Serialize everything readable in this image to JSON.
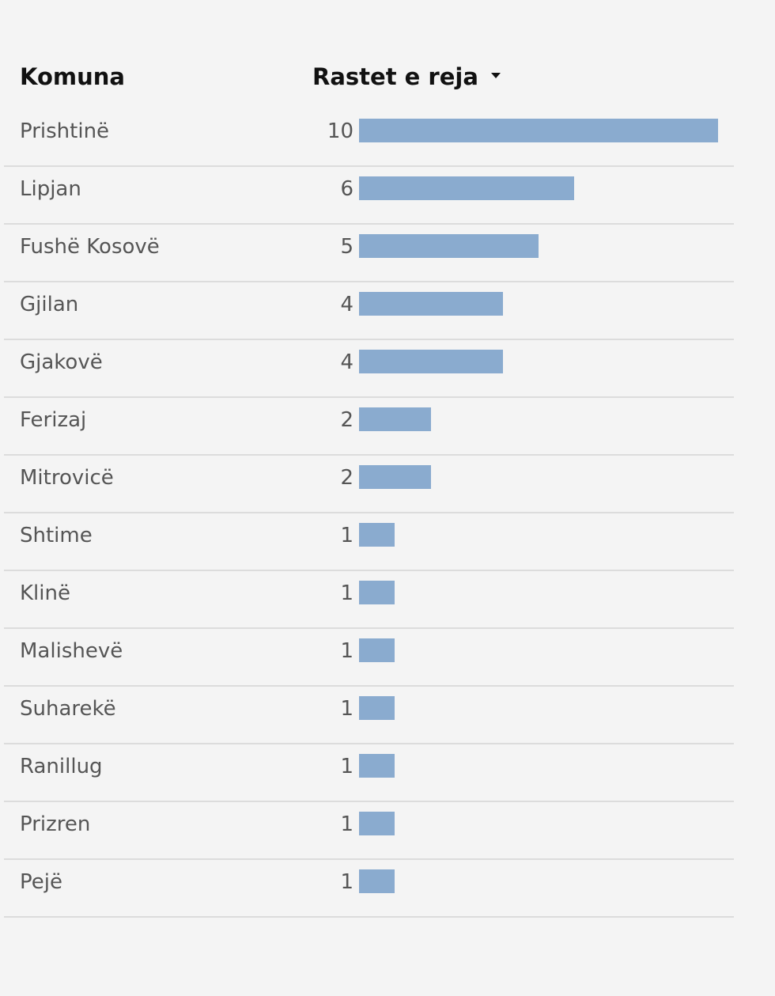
{
  "header": {
    "col_name": "Komuna",
    "col_value": "Rastet e reja",
    "sort_icon": "caret-down-icon"
  },
  "colors": {
    "bar": "#8aabcf",
    "divider": "#dcdcdc",
    "background": "#f4f4f4"
  },
  "chart_data": {
    "type": "bar",
    "orientation": "horizontal",
    "categories": [
      "Prishtinë",
      "Lipjan",
      "Fushë Kosovë",
      "Gjilan",
      "Gjakovë",
      "Ferizaj",
      "Mitrovicë",
      "Shtime",
      "Klinë",
      "Malishevë",
      "Suharekë",
      "Ranillug",
      "Prizren",
      "Pejë"
    ],
    "values": [
      10,
      6,
      5,
      4,
      4,
      2,
      2,
      1,
      1,
      1,
      1,
      1,
      1,
      1
    ],
    "xlim": [
      0,
      10
    ],
    "sorted": "descending"
  },
  "rows": [
    {
      "name": "Prishtinë",
      "value": "10"
    },
    {
      "name": "Lipjan",
      "value": "6"
    },
    {
      "name": "Fushë Kosovë",
      "value": "5"
    },
    {
      "name": "Gjilan",
      "value": "4"
    },
    {
      "name": "Gjakovë",
      "value": "4"
    },
    {
      "name": "Ferizaj",
      "value": "2"
    },
    {
      "name": "Mitrovicë",
      "value": "2"
    },
    {
      "name": "Shtime",
      "value": "1"
    },
    {
      "name": "Klinë",
      "value": "1"
    },
    {
      "name": "Malishevë",
      "value": "1"
    },
    {
      "name": "Suharekë",
      "value": "1"
    },
    {
      "name": "Ranillug",
      "value": "1"
    },
    {
      "name": "Prizren",
      "value": "1"
    },
    {
      "name": "Pejë",
      "value": "1"
    }
  ]
}
